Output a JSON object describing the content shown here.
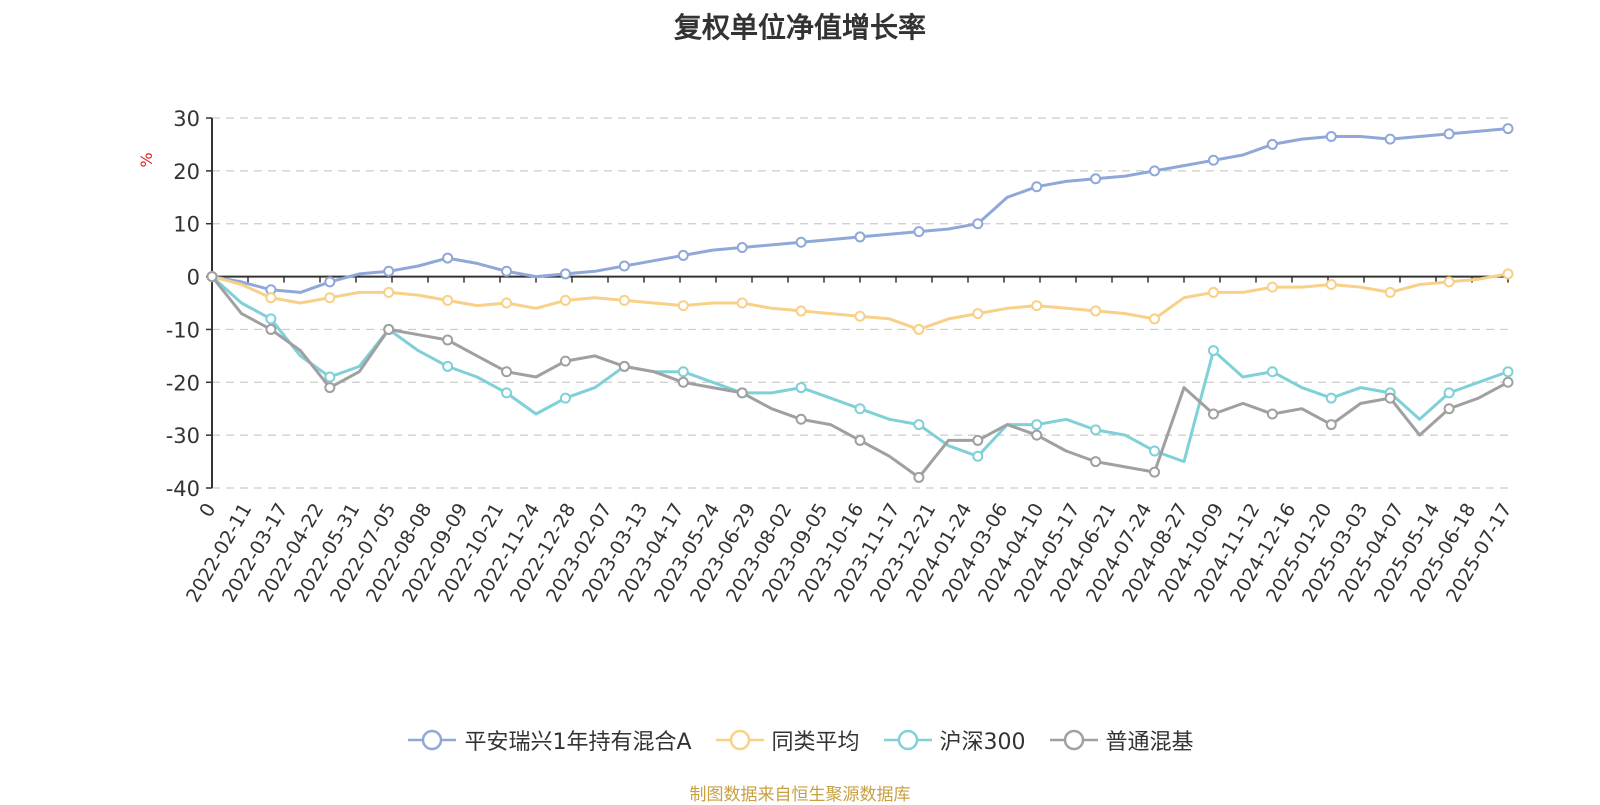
{
  "chart_data": {
    "type": "line",
    "title": "复权单位净值增长率",
    "ylabel": "%",
    "ylim": [
      -40,
      30
    ],
    "yticks": [
      30,
      20,
      10,
      0,
      -10,
      -20,
      -30,
      -40
    ],
    "origin_label": "0",
    "xticks": [
      "2022-02-11",
      "2022-03-17",
      "2022-04-22",
      "2022-05-31",
      "2022-07-05",
      "2022-08-08",
      "2022-09-09",
      "2022-10-21",
      "2022-11-24",
      "2022-12-28",
      "2023-02-07",
      "2023-03-13",
      "2023-04-17",
      "2023-05-24",
      "2023-06-29",
      "2023-08-02",
      "2023-09-05",
      "2023-10-16",
      "2023-11-17",
      "2023-12-21",
      "2024-01-24",
      "2024-03-06",
      "2024-04-10",
      "2024-05-17",
      "2024-06-21",
      "2024-07-24",
      "2024-08-27",
      "2024-10-09",
      "2024-11-12",
      "2024-12-16",
      "2025-01-20",
      "2025-03-03",
      "2025-04-07",
      "2025-05-14",
      "2025-06-18",
      "2025-07-17"
    ],
    "grid": true,
    "legend_position": "bottom",
    "series": [
      {
        "name": "平安瑞兴1年持有混合A",
        "color": "#8fa8d8",
        "values": [
          0,
          -1,
          -2.5,
          -3,
          -1,
          0.5,
          1,
          2,
          3.5,
          2.5,
          1,
          0,
          0.5,
          1,
          2,
          3,
          4,
          5,
          5.5,
          6,
          6.5,
          7,
          7.5,
          8,
          8.5,
          9,
          10,
          15,
          17,
          18,
          18.5,
          19,
          20,
          21,
          22,
          23,
          25,
          26,
          26.5,
          26.5,
          26,
          26.5,
          27,
          27.5,
          28
        ]
      },
      {
        "name": "同类平均",
        "color": "#f8d088",
        "values": [
          0,
          -1.5,
          -4,
          -5,
          -4,
          -3,
          -3,
          -3.5,
          -4.5,
          -5.5,
          -5,
          -6,
          -4.5,
          -4,
          -4.5,
          -5,
          -5.5,
          -5,
          -5,
          -6,
          -6.5,
          -7,
          -7.5,
          -8,
          -10,
          -8,
          -7,
          -6,
          -5.5,
          -6,
          -6.5,
          -7,
          -8,
          -4,
          -3,
          -3,
          -2,
          -2,
          -1.5,
          -2,
          -3,
          -1.5,
          -1,
          -0.5,
          0.5
        ]
      },
      {
        "name": "沪深300",
        "color": "#80d0d8",
        "values": [
          0,
          -5,
          -8,
          -15,
          -19,
          -17,
          -10,
          -14,
          -17,
          -19,
          -22,
          -26,
          -23,
          -21,
          -17,
          -18,
          -18,
          -20,
          -22,
          -22,
          -21,
          -23,
          -25,
          -27,
          -28,
          -32,
          -34,
          -28,
          -28,
          -27,
          -29,
          -30,
          -33,
          -35,
          -14,
          -19,
          -18,
          -21,
          -23,
          -21,
          -22,
          -27,
          -22,
          -20,
          -18
        ]
      },
      {
        "name": "普通混基",
        "color": "#a0a0a0",
        "values": [
          0,
          -7,
          -10,
          -14,
          -21,
          -18,
          -10,
          -11,
          -12,
          -15,
          -18,
          -19,
          -16,
          -15,
          -17,
          -18,
          -20,
          -21,
          -22,
          -25,
          -27,
          -28,
          -31,
          -34,
          -38,
          -31,
          -31,
          -28,
          -30,
          -33,
          -35,
          -36,
          -37,
          -21,
          -26,
          -24,
          -26,
          -25,
          -28,
          -24,
          -23,
          -30,
          -25,
          -23,
          -20
        ]
      }
    ]
  },
  "source_note": "制图数据来自恒生聚源数据库"
}
